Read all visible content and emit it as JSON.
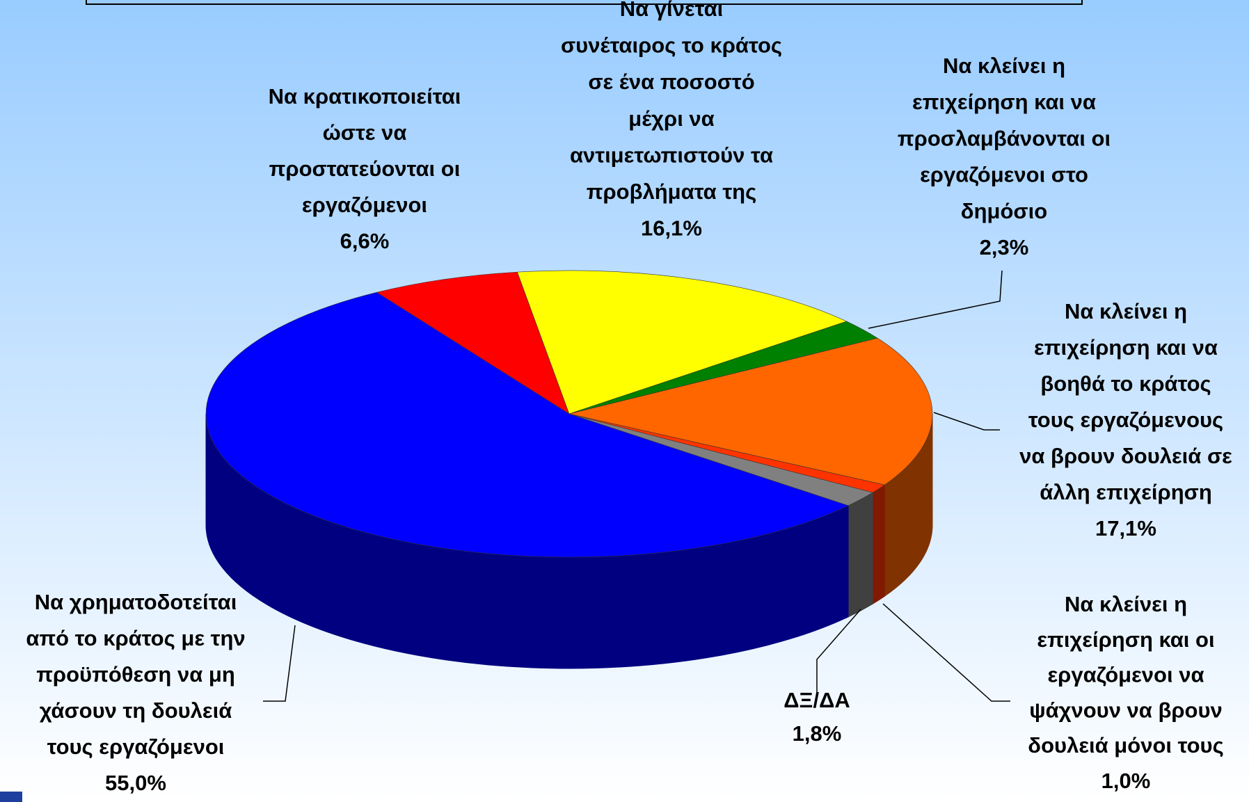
{
  "chart_data": {
    "type": "pie",
    "categories": [
      [
        "Να χρηματοδοτείται",
        "από το κράτος με την",
        "προϋπόθεση να μη",
        "χάσουν τη δουλειά",
        "τους εργαζόμενοι"
      ],
      [
        "Να κρατικοποιείται",
        "ώστε να",
        "προστατεύονται οι",
        "εργαζόμενοι"
      ],
      [
        "Να γίνεται",
        "συνέταιρος το κράτος",
        "σε ένα ποσοστό",
        "μέχρι να",
        "αντιμετωπιστούν τα",
        "προβλήματα της"
      ],
      [
        "Να κλείνει η",
        "επιχείρηση και να",
        "προσλαμβάνονται οι",
        "εργαζόμενοι στο",
        "δημόσιο"
      ],
      [
        "Να κλείνει η",
        "επιχείρηση και να",
        "βοηθά το κράτος",
        "τους  εργαζόμενους",
        "να βρουν δουλειά σε",
        "άλλη επιχείρηση"
      ],
      [
        "Να κλείνει η",
        "επιχείρηση και οι",
        "εργαζόμενοι να",
        "ψάχνουν να βρουν",
        "δουλειά μόνοι τους"
      ],
      [
        "ΔΞ/ΔΑ"
      ]
    ],
    "values": [
      55.0,
      6.6,
      16.1,
      2.3,
      17.1,
      1.0,
      1.8
    ],
    "value_labels": [
      "55,0%",
      "6,6%",
      "16,1%",
      "2,3%",
      "17,1%",
      "1,0%",
      "1,8%"
    ],
    "colors": [
      "#0000ff",
      "#ff0000",
      "#ffff00",
      "#008000",
      "#ff6600",
      "#ff3300",
      "#808080"
    ]
  }
}
